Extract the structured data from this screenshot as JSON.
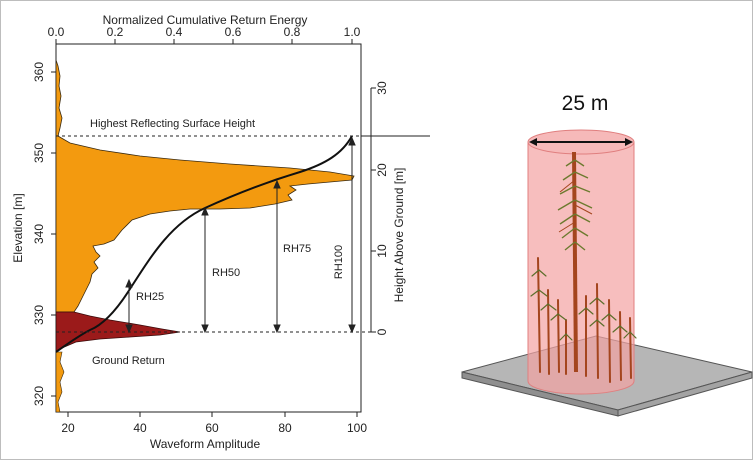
{
  "figure": {
    "top_axis_title": "Normalized Cumulative Return Energy",
    "top_ticks": [
      "0.0",
      "0.2",
      "0.4",
      "0.6",
      "0.8",
      "1.0"
    ],
    "bottom_axis_title": "Waveform Amplitude",
    "bottom_ticks": [
      "20",
      "40",
      "60",
      "80",
      "100"
    ],
    "left_axis_title": "Elevation [m]",
    "left_ticks": [
      "320",
      "330",
      "340",
      "350",
      "360"
    ],
    "right_axis_title": "Height Above Ground [m]",
    "right_ticks": [
      "0",
      "10",
      "20",
      "30"
    ],
    "labels": {
      "highest": "Highest Reflecting Surface Height",
      "ground": "Ground Return",
      "rh25": "RH25",
      "rh50": "RH50",
      "rh75": "RH75",
      "rh100": "RH100",
      "plot_size": "25 m"
    },
    "colors": {
      "canopy_fill": "#f39a0f",
      "ground_fill": "#9b1a1a",
      "cylinder_fill": "#f3a3a3",
      "ground_plane": "#b6b6b6",
      "trunk": "#a4451e",
      "foliage": "#5c6e2a"
    }
  }
}
